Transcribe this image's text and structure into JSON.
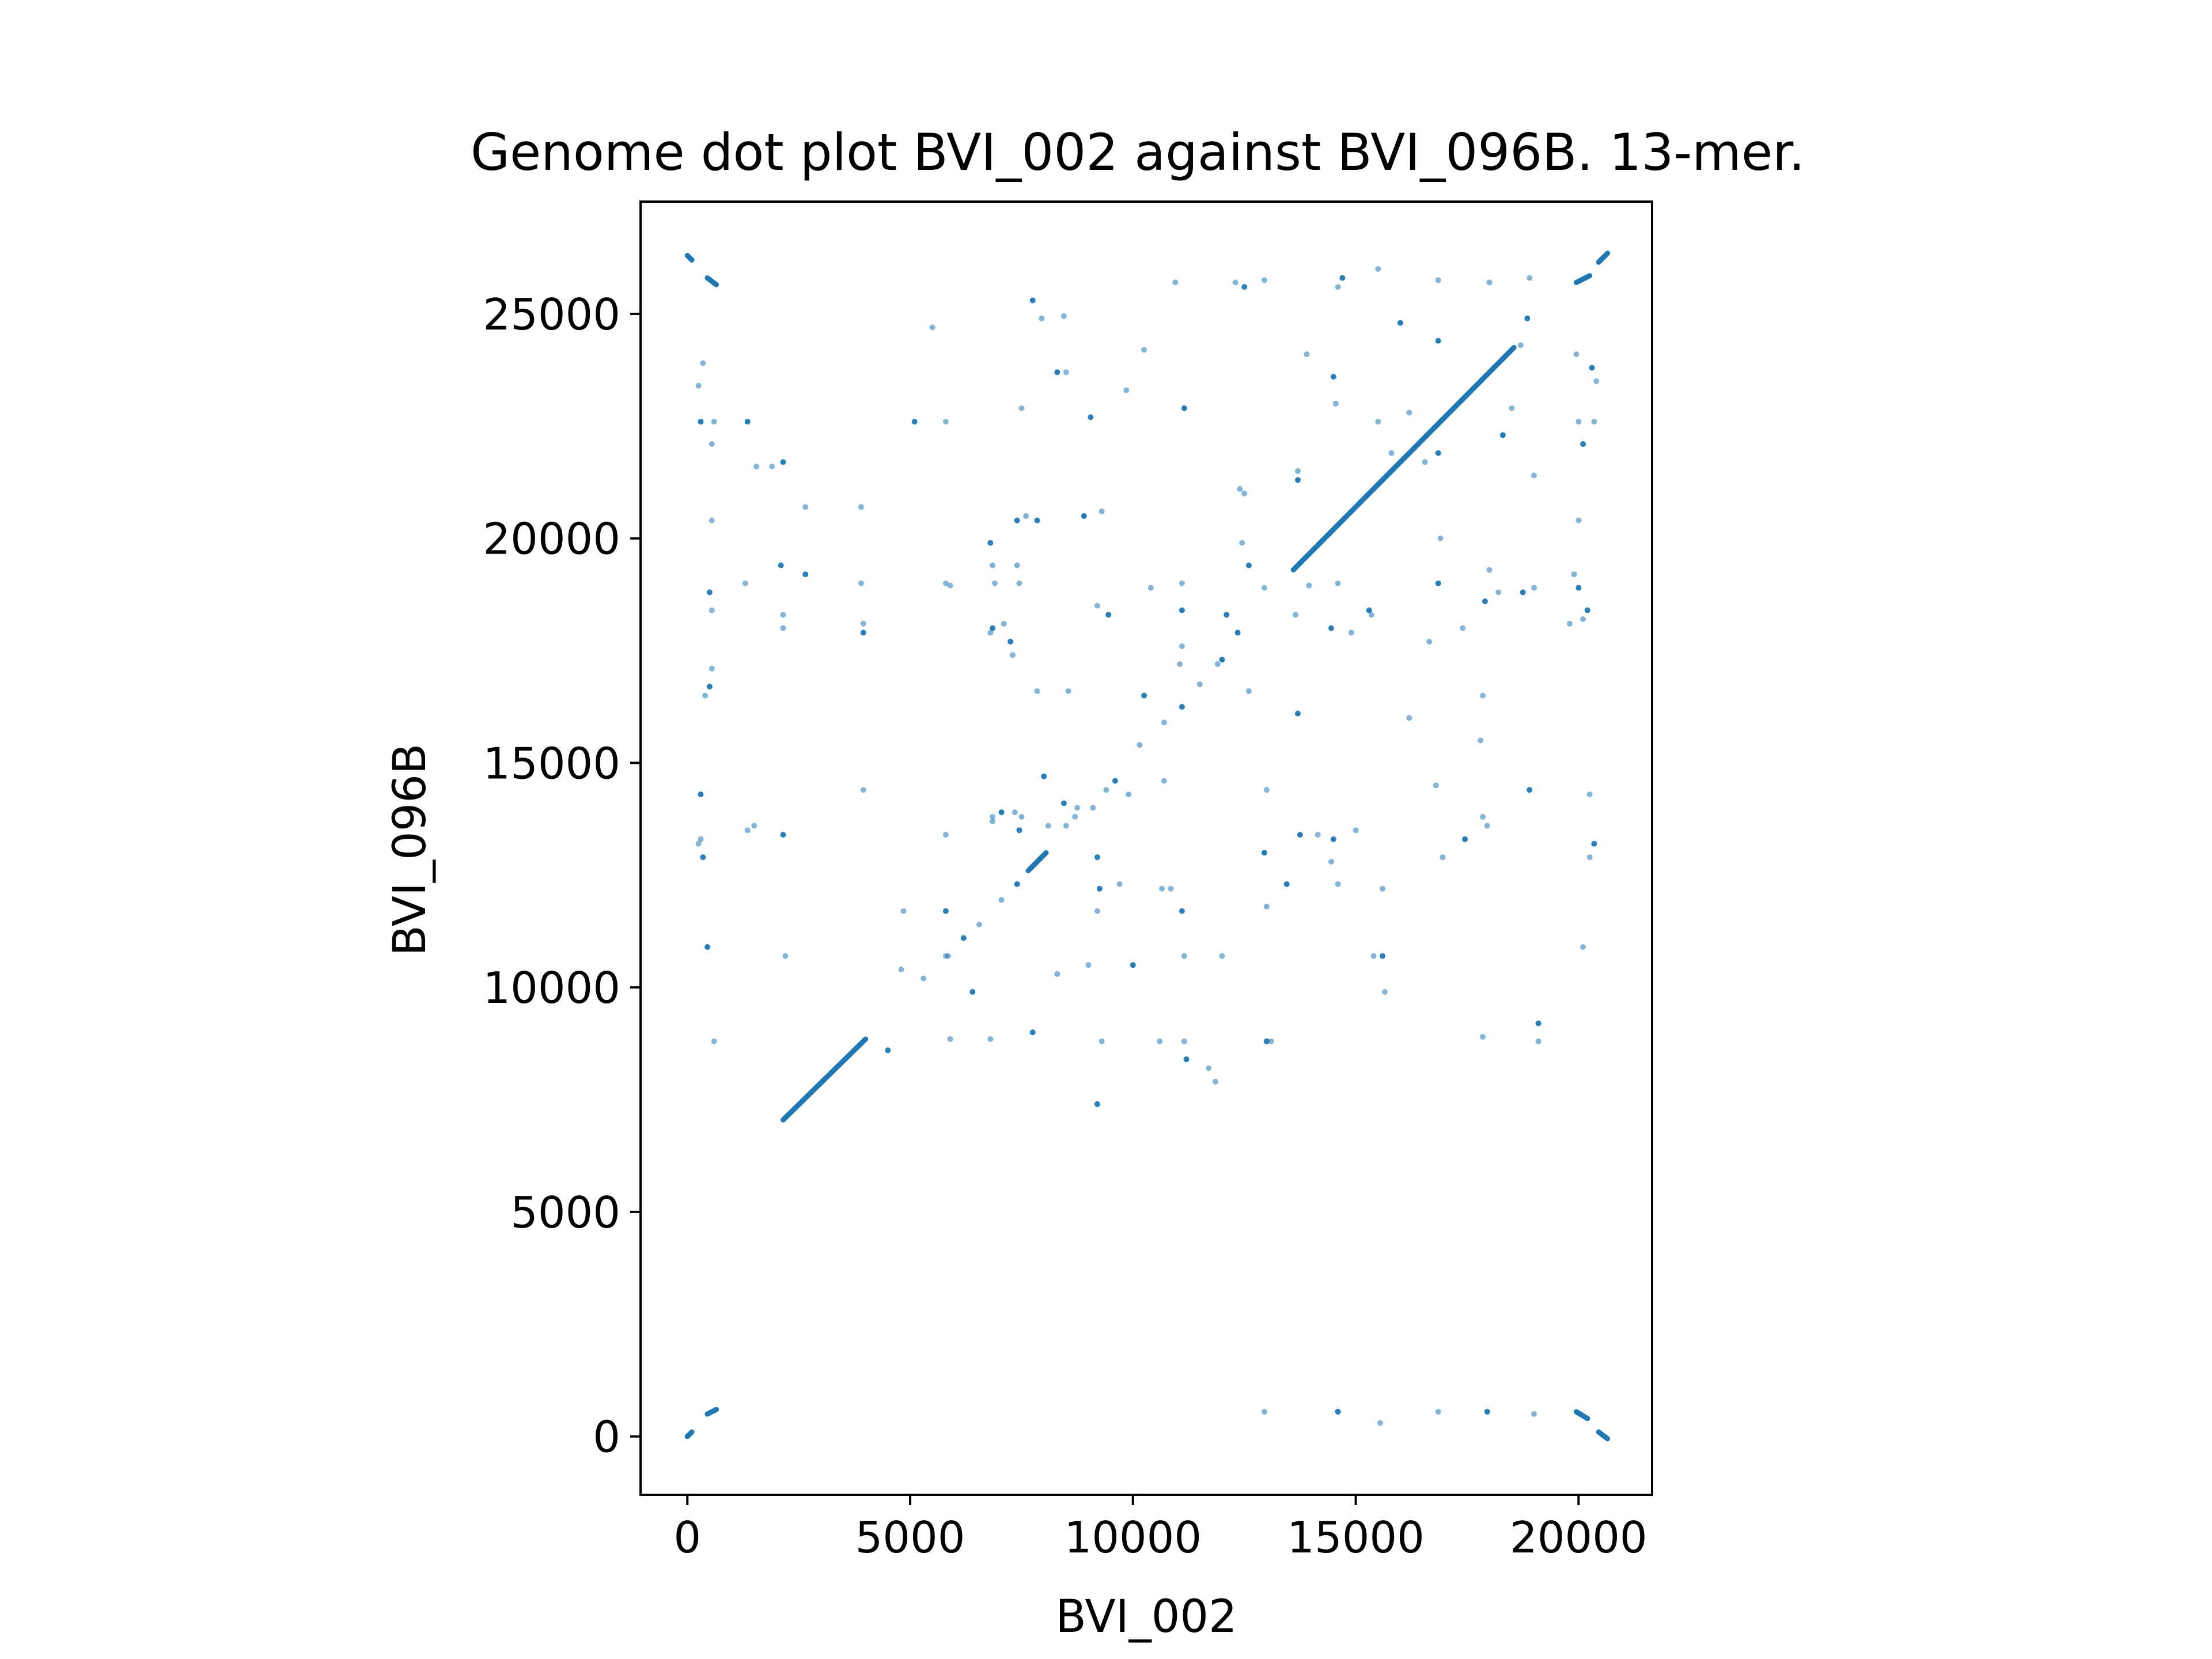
{
  "chart_data": {
    "type": "scatter",
    "title": "Genome dot plot BVI_002 against BVI_096B. 13-mer.",
    "xlabel": "BVI_002",
    "ylabel": "BVI_096B",
    "xlim": [
      -1050,
      21650
    ],
    "ylim": [
      -1300,
      27500
    ],
    "xticks": [
      0,
      5000,
      10000,
      15000,
      20000
    ],
    "yticks": [
      0,
      5000,
      10000,
      15000,
      20000,
      25000
    ],
    "grid": false,
    "legend": "none",
    "colors": {
      "points": "#1f77b4",
      "text": "#000000"
    },
    "series": [
      {
        "segments": [
          [
            [
              2150,
              7050
            ],
            [
              4000,
              8850
            ]
          ],
          [
            [
              7650,
              12600
            ],
            [
              8050,
              13000
            ]
          ],
          [
            [
              13600,
              19300
            ],
            [
              18550,
              24250
            ]
          ],
          [
            [
              0,
              26300
            ],
            [
              100,
              26200
            ]
          ],
          [
            [
              450,
              25800
            ],
            [
              650,
              25650
            ]
          ],
          [
            [
              0,
              0
            ],
            [
              100,
              100
            ]
          ],
          [
            [
              450,
              500
            ],
            [
              650,
              600
            ]
          ],
          [
            [
              19950,
              25700
            ],
            [
              20250,
              25850
            ]
          ],
          [
            [
              20450,
              26150
            ],
            [
              20650,
              26350
            ]
          ],
          [
            [
              19950,
              550
            ],
            [
              20200,
              400
            ]
          ],
          [
            [
              20450,
              100
            ],
            [
              20650,
              -50
            ]
          ]
        ],
        "points": [
          [
            4500,
            8600
          ],
          [
            5300,
            10200
          ],
          [
            5850,
            10700
          ],
          [
            6200,
            11100
          ],
          [
            6550,
            11400
          ],
          [
            7050,
            11950
          ],
          [
            7400,
            12300
          ],
          [
            8700,
            13800
          ],
          [
            9100,
            14000
          ],
          [
            9600,
            14600
          ],
          [
            10150,
            15400
          ],
          [
            10700,
            15900
          ],
          [
            11100,
            16250
          ],
          [
            11500,
            16750
          ],
          [
            11900,
            17200
          ],
          [
            12350,
            17900
          ],
          [
            12950,
            18900
          ],
          [
            11050,
            17200
          ],
          [
            12000,
            17300
          ],
          [
            9900,
            14300
          ],
          [
            9400,
            14400
          ],
          [
            8450,
            14100
          ],
          [
            7500,
            13800
          ],
          [
            6850,
            13700
          ],
          [
            8000,
            14700
          ],
          [
            8500,
            13600
          ],
          [
            10700,
            14600
          ],
          [
            10250,
            16500
          ],
          [
            350,
            23900
          ],
          [
            250,
            23400
          ],
          [
            300,
            22600
          ],
          [
            550,
            22100
          ],
          [
            600,
            22600
          ],
          [
            1350,
            22600
          ],
          [
            1550,
            21600
          ],
          [
            1900,
            21600
          ],
          [
            2150,
            21700
          ],
          [
            2650,
            20700
          ],
          [
            3900,
            20700
          ],
          [
            5100,
            22600
          ],
          [
            5800,
            22600
          ],
          [
            5500,
            24700
          ],
          [
            7750,
            25300
          ],
          [
            7950,
            24900
          ],
          [
            8450,
            24950
          ],
          [
            8300,
            23700
          ],
          [
            8500,
            23700
          ],
          [
            7500,
            22900
          ],
          [
            9050,
            22700
          ],
          [
            9850,
            23300
          ],
          [
            10250,
            24200
          ],
          [
            11150,
            22900
          ],
          [
            10950,
            25700
          ],
          [
            12300,
            25700
          ],
          [
            12500,
            25600
          ],
          [
            12950,
            25750
          ],
          [
            13900,
            24100
          ],
          [
            14500,
            23600
          ],
          [
            14550,
            23000
          ],
          [
            14600,
            25600
          ],
          [
            14700,
            25800
          ],
          [
            15500,
            26000
          ],
          [
            15500,
            22600
          ],
          [
            16000,
            24800
          ],
          [
            16200,
            22800
          ],
          [
            16850,
            25750
          ],
          [
            16850,
            24400
          ],
          [
            18000,
            25700
          ],
          [
            18900,
            25800
          ],
          [
            18850,
            24900
          ],
          [
            18700,
            24300
          ],
          [
            18500,
            22900
          ],
          [
            18300,
            22300
          ],
          [
            19000,
            21400
          ],
          [
            20000,
            22600
          ],
          [
            20100,
            22100
          ],
          [
            20350,
            22600
          ],
          [
            20400,
            23500
          ],
          [
            20300,
            23800
          ],
          [
            19950,
            24100
          ],
          [
            550,
            20400
          ],
          [
            500,
            18800
          ],
          [
            550,
            18400
          ],
          [
            550,
            17100
          ],
          [
            500,
            16700
          ],
          [
            400,
            16500
          ],
          [
            1300,
            19000
          ],
          [
            2100,
            19400
          ],
          [
            2150,
            18000
          ],
          [
            2150,
            18300
          ],
          [
            2650,
            19200
          ],
          [
            3900,
            19000
          ],
          [
            3950,
            18100
          ],
          [
            3950,
            17900
          ],
          [
            5800,
            19000
          ],
          [
            5900,
            18950
          ],
          [
            6800,
            19900
          ],
          [
            6850,
            19400
          ],
          [
            6900,
            19000
          ],
          [
            6850,
            18000
          ],
          [
            6800,
            17900
          ],
          [
            7100,
            18100
          ],
          [
            7250,
            17700
          ],
          [
            7300,
            17400
          ],
          [
            7400,
            19400
          ],
          [
            7400,
            20400
          ],
          [
            7600,
            20500
          ],
          [
            7450,
            19000
          ],
          [
            7850,
            20400
          ],
          [
            7850,
            16600
          ],
          [
            8550,
            16600
          ],
          [
            8900,
            20500
          ],
          [
            9300,
            20600
          ],
          [
            9200,
            18500
          ],
          [
            9450,
            18300
          ],
          [
            10400,
            18900
          ],
          [
            11100,
            19000
          ],
          [
            11100,
            18400
          ],
          [
            11100,
            17600
          ],
          [
            12450,
            19900
          ],
          [
            12600,
            19400
          ],
          [
            12500,
            21000
          ],
          [
            12400,
            21100
          ],
          [
            12100,
            18300
          ],
          [
            12600,
            16600
          ],
          [
            13700,
            21500
          ],
          [
            13700,
            21300
          ],
          [
            13950,
            18950
          ],
          [
            13650,
            18300
          ],
          [
            14450,
            18000
          ],
          [
            14600,
            19000
          ],
          [
            14900,
            17900
          ],
          [
            15300,
            18400
          ],
          [
            15350,
            18300
          ],
          [
            15800,
            21900
          ],
          [
            16850,
            21900
          ],
          [
            16550,
            21700
          ],
          [
            16900,
            20000
          ],
          [
            16850,
            19000
          ],
          [
            16650,
            17700
          ],
          [
            17400,
            18000
          ],
          [
            17900,
            18600
          ],
          [
            18200,
            18800
          ],
          [
            18000,
            19300
          ],
          [
            18750,
            18800
          ],
          [
            19000,
            18900
          ],
          [
            19900,
            19200
          ],
          [
            20000,
            18900
          ],
          [
            20100,
            18200
          ],
          [
            19800,
            18100
          ],
          [
            20200,
            18400
          ],
          [
            20000,
            20400
          ],
          [
            17850,
            16500
          ],
          [
            13700,
            16100
          ],
          [
            16200,
            16000
          ],
          [
            17800,
            15500
          ],
          [
            300,
            14300
          ],
          [
            300,
            13300
          ],
          [
            250,
            13200
          ],
          [
            350,
            12900
          ],
          [
            1350,
            13500
          ],
          [
            1500,
            13600
          ],
          [
            2150,
            13400
          ],
          [
            3950,
            14400
          ],
          [
            5800,
            13400
          ],
          [
            7050,
            13900
          ],
          [
            6850,
            13800
          ],
          [
            7350,
            13900
          ],
          [
            7450,
            13500
          ],
          [
            8100,
            13600
          ],
          [
            8750,
            14000
          ],
          [
            9200,
            12900
          ],
          [
            9200,
            11700
          ],
          [
            9700,
            12300
          ],
          [
            9250,
            12200
          ],
          [
            10650,
            12200
          ],
          [
            10850,
            12200
          ],
          [
            11100,
            11700
          ],
          [
            11150,
            10700
          ],
          [
            12000,
            10700
          ],
          [
            12950,
            13000
          ],
          [
            13000,
            11800
          ],
          [
            13000,
            14400
          ],
          [
            13750,
            13400
          ],
          [
            14150,
            13400
          ],
          [
            14450,
            12800
          ],
          [
            14500,
            13300
          ],
          [
            15000,
            13500
          ],
          [
            15600,
            12200
          ],
          [
            13450,
            12300
          ],
          [
            14600,
            12300
          ],
          [
            15400,
            10700
          ],
          [
            15600,
            10700
          ],
          [
            15650,
            9900
          ],
          [
            16800,
            14500
          ],
          [
            17450,
            13300
          ],
          [
            17850,
            13800
          ],
          [
            17950,
            13600
          ],
          [
            18900,
            14400
          ],
          [
            16950,
            12900
          ],
          [
            20250,
            14300
          ],
          [
            20350,
            13200
          ],
          [
            20250,
            12900
          ],
          [
            20100,
            10900
          ],
          [
            450,
            10900
          ],
          [
            2200,
            10700
          ],
          [
            4850,
            11700
          ],
          [
            5800,
            11700
          ],
          [
            5800,
            10700
          ],
          [
            4800,
            10400
          ],
          [
            6400,
            9900
          ],
          [
            5900,
            8850
          ],
          [
            6800,
            8850
          ],
          [
            7750,
            9000
          ],
          [
            8300,
            10300
          ],
          [
            9000,
            10500
          ],
          [
            10000,
            10500
          ],
          [
            10600,
            8800
          ],
          [
            11150,
            8800
          ],
          [
            11200,
            8400
          ],
          [
            11700,
            8200
          ],
          [
            11850,
            7900
          ],
          [
            13000,
            8800
          ],
          [
            13100,
            8800
          ],
          [
            9300,
            8800
          ],
          [
            9200,
            7400
          ],
          [
            600,
            8800
          ],
          [
            17850,
            8900
          ],
          [
            19100,
            9200
          ],
          [
            19100,
            8800
          ],
          [
            12950,
            550
          ],
          [
            14600,
            550
          ],
          [
            15550,
            300
          ],
          [
            16850,
            550
          ],
          [
            17950,
            550
          ],
          [
            19000,
            500
          ]
        ]
      }
    ]
  }
}
